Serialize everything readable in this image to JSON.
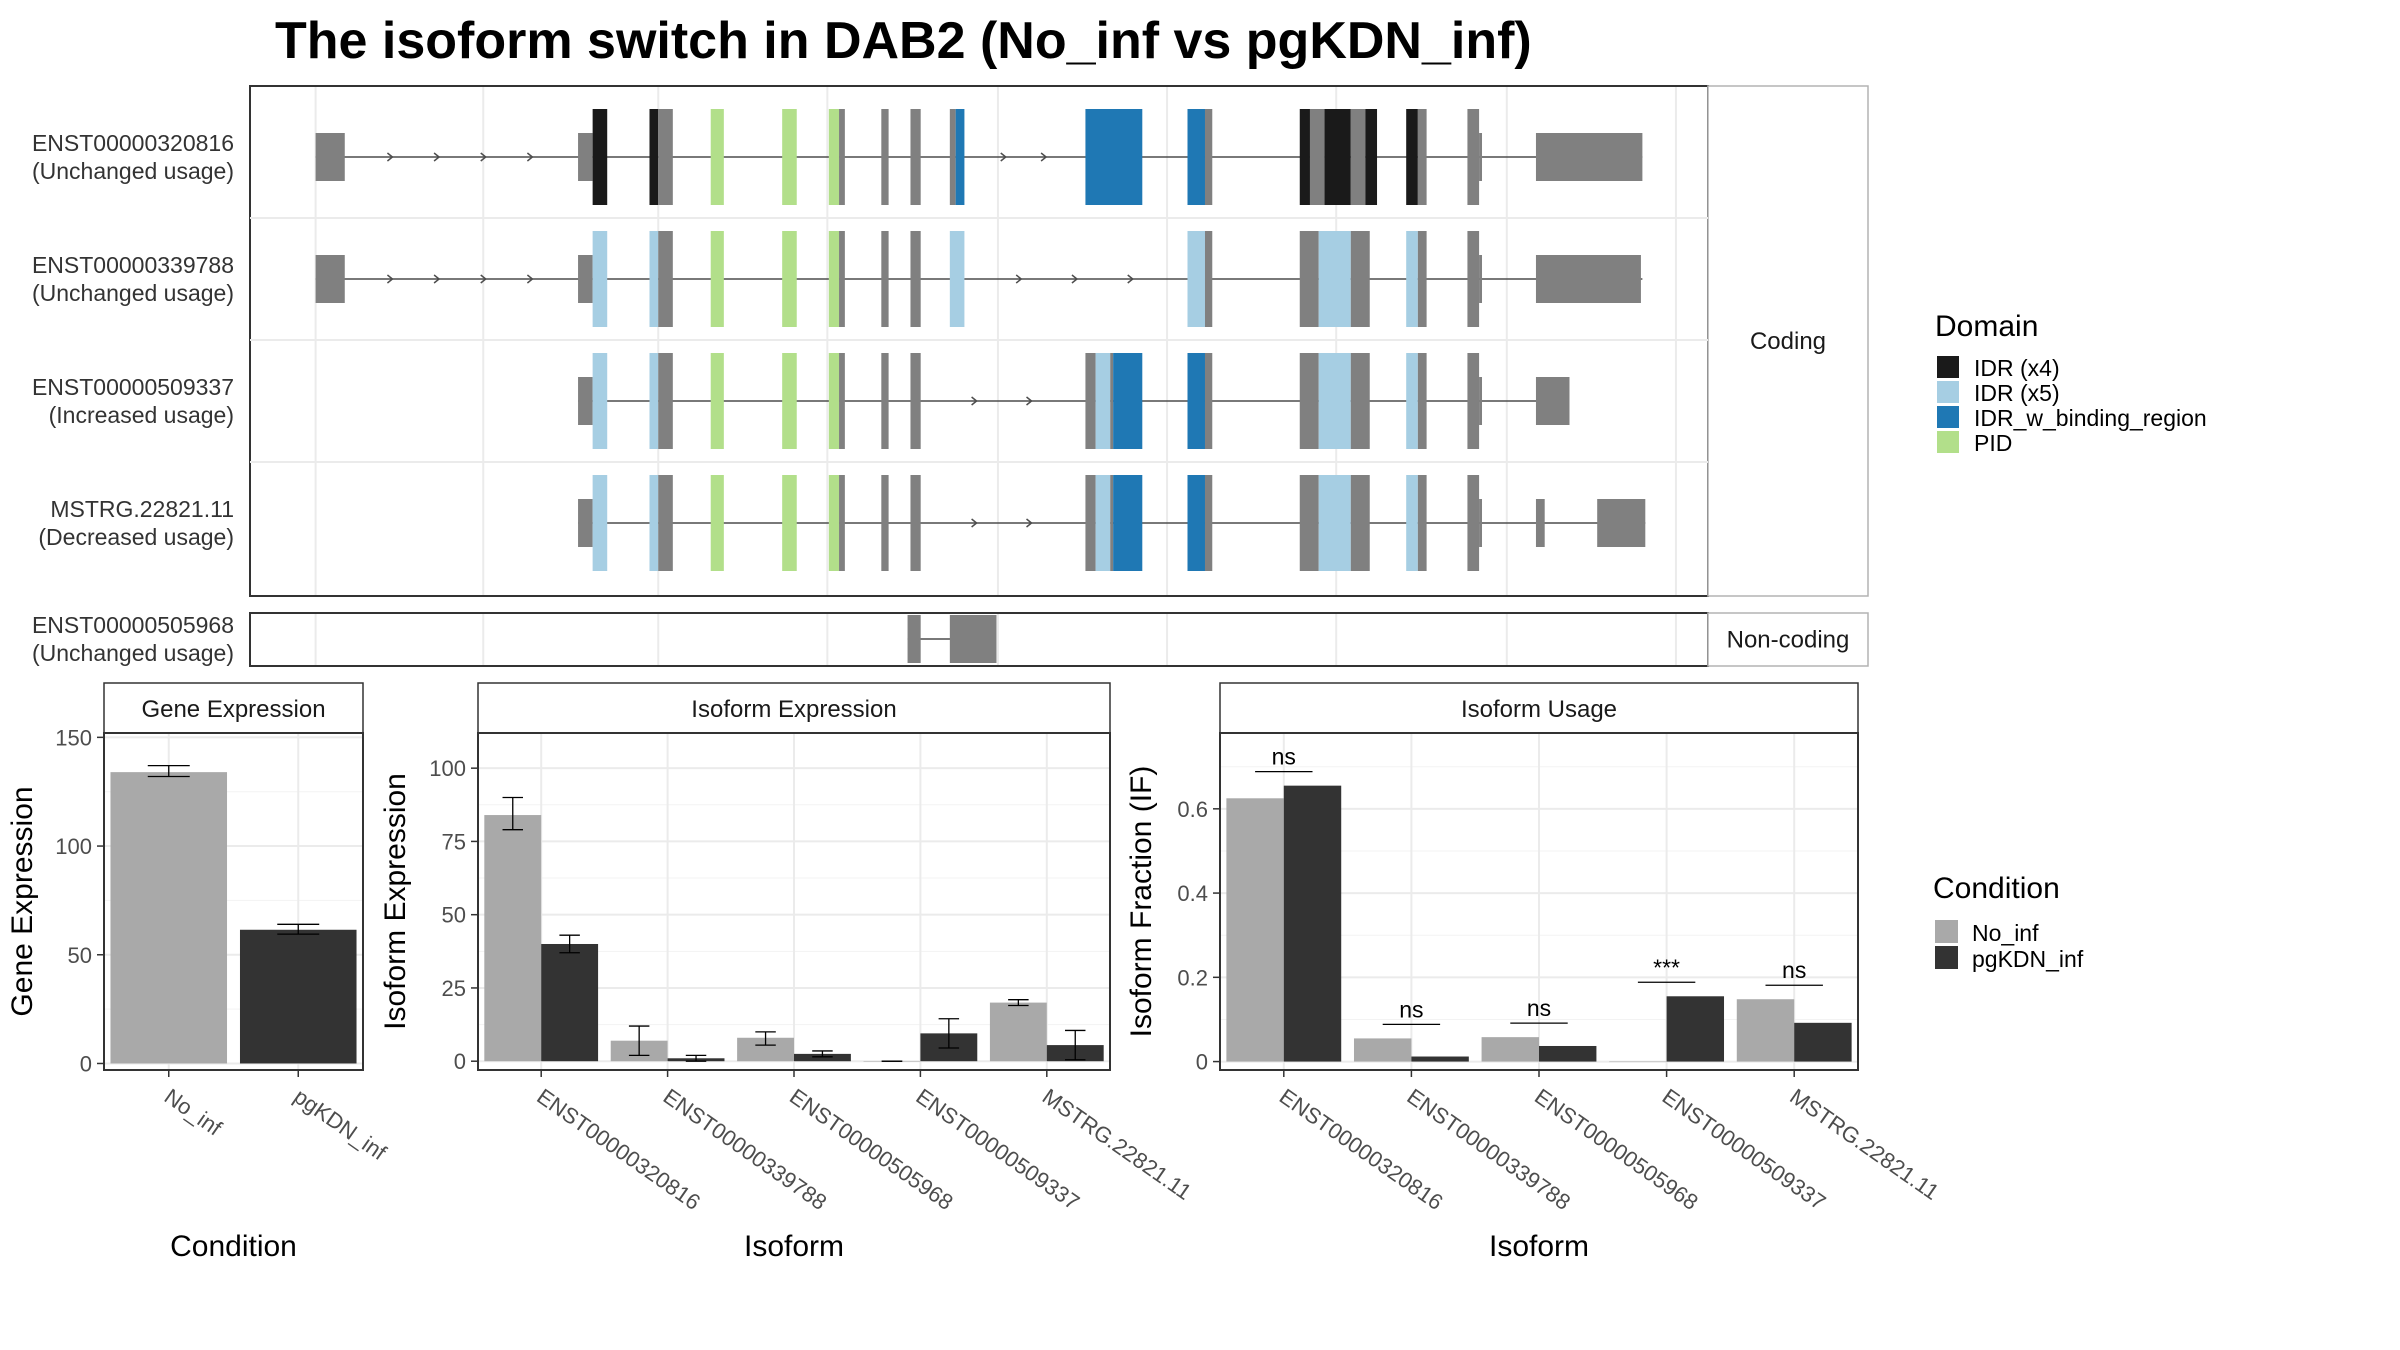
{
  "title": "The isoform switch in DAB2 (No_inf vs pgKDN_inf)",
  "colors": {
    "intron": "#4d4d4d",
    "exon": "#808080",
    "IDR_x4": "#1a1a1a",
    "IDR_x5": "#a6cee3",
    "IDR_w_binding_region": "#1f78b4",
    "PID": "#b2df8a",
    "No_inf": "#a9a9a9",
    "pgKDN_inf": "#333333",
    "grid": "#ebebeb",
    "panel_border": "#333333",
    "strip_border": "#b3b3b3"
  },
  "domain_legend": {
    "title": "Domain",
    "items": [
      {
        "key": "IDR_x4",
        "label": "IDR (x4)"
      },
      {
        "key": "IDR_x5",
        "label": "IDR (x5)"
      },
      {
        "key": "IDR_w_binding_region",
        "label": "IDR_w_binding_region"
      },
      {
        "key": "PID",
        "label": "PID"
      }
    ]
  },
  "condition_legend": {
    "title": "Condition",
    "items": [
      {
        "key": "No_inf",
        "label": "No_inf"
      },
      {
        "key": "pgKDN_inf",
        "label": "pgKDN_inf"
      }
    ]
  },
  "structure": {
    "coding_label": "Coding",
    "noncoding_label": "Non-coding",
    "coding": [
      {
        "id": "ENST00000320816",
        "usage": "(Unchanged usage)",
        "span": [
          0.045,
          0.955
        ],
        "exons": [
          [
            0.045,
            0.065,
            "exon",
            24
          ],
          [
            0.225,
            0.235,
            "exon",
            24
          ],
          [
            0.235,
            0.245,
            "IDR_x4",
            48
          ],
          [
            0.274,
            0.28,
            "IDR_x4",
            48
          ],
          [
            0.28,
            0.29,
            "exon",
            48
          ],
          [
            0.316,
            0.325,
            "PID",
            48
          ],
          [
            0.365,
            0.375,
            "PID",
            48
          ],
          [
            0.397,
            0.404,
            "PID",
            48
          ],
          [
            0.404,
            0.408,
            "exon",
            48
          ],
          [
            0.433,
            0.438,
            "exon",
            48
          ],
          [
            0.453,
            0.46,
            "exon",
            48
          ],
          [
            0.48,
            0.484,
            "exon",
            48
          ],
          [
            0.484,
            0.49,
            "IDR_w_binding_region",
            48
          ],
          [
            0.573,
            0.612,
            "IDR_w_binding_region",
            48
          ],
          [
            0.643,
            0.655,
            "IDR_w_binding_region",
            48
          ],
          [
            0.655,
            0.66,
            "exon",
            48
          ],
          [
            0.72,
            0.727,
            "IDR_x4",
            48
          ],
          [
            0.727,
            0.737,
            "exon",
            48
          ],
          [
            0.737,
            0.755,
            "IDR_x4",
            48
          ],
          [
            0.755,
            0.765,
            "exon",
            48
          ],
          [
            0.765,
            0.773,
            "IDR_x4",
            48
          ],
          [
            0.793,
            0.801,
            "IDR_x4",
            48
          ],
          [
            0.801,
            0.807,
            "exon",
            48
          ],
          [
            0.835,
            0.843,
            "exon",
            48
          ],
          [
            0.843,
            0.845,
            "exon",
            24
          ],
          [
            0.882,
            0.955,
            "exon",
            24
          ]
        ]
      },
      {
        "id": "ENST00000339788",
        "usage": "(Unchanged usage)",
        "span": [
          0.045,
          0.955
        ],
        "exons": [
          [
            0.045,
            0.065,
            "exon",
            24
          ],
          [
            0.225,
            0.235,
            "exon",
            24
          ],
          [
            0.235,
            0.245,
            "IDR_x5",
            48
          ],
          [
            0.274,
            0.28,
            "IDR_x5",
            48
          ],
          [
            0.28,
            0.29,
            "exon",
            48
          ],
          [
            0.316,
            0.325,
            "PID",
            48
          ],
          [
            0.365,
            0.375,
            "PID",
            48
          ],
          [
            0.397,
            0.404,
            "PID",
            48
          ],
          [
            0.404,
            0.408,
            "exon",
            48
          ],
          [
            0.433,
            0.438,
            "exon",
            48
          ],
          [
            0.453,
            0.46,
            "exon",
            48
          ],
          [
            0.48,
            0.49,
            "IDR_x5",
            48
          ],
          [
            0.643,
            0.655,
            "IDR_x5",
            48
          ],
          [
            0.655,
            0.66,
            "exon",
            48
          ],
          [
            0.72,
            0.733,
            "exon",
            48
          ],
          [
            0.733,
            0.755,
            "IDR_x5",
            48
          ],
          [
            0.755,
            0.768,
            "exon",
            48
          ],
          [
            0.793,
            0.801,
            "IDR_x5",
            48
          ],
          [
            0.801,
            0.807,
            "exon",
            48
          ],
          [
            0.835,
            0.843,
            "exon",
            48
          ],
          [
            0.843,
            0.845,
            "exon",
            24
          ],
          [
            0.882,
            0.954,
            "exon",
            24
          ]
        ]
      },
      {
        "id": "ENST00000509337",
        "usage": "(Increased usage)",
        "span": [
          0.225,
          0.905
        ],
        "exons": [
          [
            0.225,
            0.235,
            "exon",
            24
          ],
          [
            0.235,
            0.245,
            "IDR_x5",
            48
          ],
          [
            0.274,
            0.28,
            "IDR_x5",
            48
          ],
          [
            0.28,
            0.29,
            "exon",
            48
          ],
          [
            0.316,
            0.325,
            "PID",
            48
          ],
          [
            0.365,
            0.375,
            "PID",
            48
          ],
          [
            0.397,
            0.404,
            "PID",
            48
          ],
          [
            0.404,
            0.408,
            "exon",
            48
          ],
          [
            0.433,
            0.438,
            "exon",
            48
          ],
          [
            0.453,
            0.46,
            "exon",
            48
          ],
          [
            0.573,
            0.58,
            "exon",
            48
          ],
          [
            0.58,
            0.59,
            "IDR_x5",
            48
          ],
          [
            0.59,
            0.592,
            "exon",
            48
          ],
          [
            0.592,
            0.612,
            "IDR_w_binding_region",
            48
          ],
          [
            0.643,
            0.655,
            "IDR_w_binding_region",
            48
          ],
          [
            0.655,
            0.66,
            "exon",
            48
          ],
          [
            0.72,
            0.733,
            "exon",
            48
          ],
          [
            0.733,
            0.755,
            "IDR_x5",
            48
          ],
          [
            0.755,
            0.768,
            "exon",
            48
          ],
          [
            0.793,
            0.801,
            "IDR_x5",
            48
          ],
          [
            0.801,
            0.807,
            "exon",
            48
          ],
          [
            0.835,
            0.843,
            "exon",
            48
          ],
          [
            0.843,
            0.845,
            "exon",
            24
          ],
          [
            0.882,
            0.905,
            "exon",
            24
          ]
        ]
      },
      {
        "id": "MSTRG.22821.11",
        "usage": "(Decreased usage)",
        "span": [
          0.225,
          0.957
        ],
        "exons": [
          [
            0.225,
            0.235,
            "exon",
            24
          ],
          [
            0.235,
            0.245,
            "IDR_x5",
            48
          ],
          [
            0.274,
            0.28,
            "IDR_x5",
            48
          ],
          [
            0.28,
            0.29,
            "exon",
            48
          ],
          [
            0.316,
            0.325,
            "PID",
            48
          ],
          [
            0.365,
            0.375,
            "PID",
            48
          ],
          [
            0.397,
            0.404,
            "PID",
            48
          ],
          [
            0.404,
            0.408,
            "exon",
            48
          ],
          [
            0.433,
            0.438,
            "exon",
            48
          ],
          [
            0.453,
            0.46,
            "exon",
            48
          ],
          [
            0.573,
            0.58,
            "exon",
            48
          ],
          [
            0.58,
            0.59,
            "IDR_x5",
            48
          ],
          [
            0.59,
            0.592,
            "exon",
            48
          ],
          [
            0.592,
            0.612,
            "IDR_w_binding_region",
            48
          ],
          [
            0.643,
            0.655,
            "IDR_w_binding_region",
            48
          ],
          [
            0.655,
            0.66,
            "exon",
            48
          ],
          [
            0.72,
            0.733,
            "exon",
            48
          ],
          [
            0.733,
            0.755,
            "IDR_x5",
            48
          ],
          [
            0.755,
            0.768,
            "exon",
            48
          ],
          [
            0.793,
            0.801,
            "IDR_x5",
            48
          ],
          [
            0.801,
            0.807,
            "exon",
            48
          ],
          [
            0.835,
            0.843,
            "exon",
            48
          ],
          [
            0.843,
            0.845,
            "exon",
            24
          ],
          [
            0.882,
            0.888,
            "exon",
            24
          ],
          [
            0.924,
            0.957,
            "exon",
            24
          ]
        ]
      }
    ],
    "noncoding": [
      {
        "id": "ENST00000505968",
        "usage": "(Unchanged usage)",
        "span": [
          0.451,
          0.512
        ],
        "exons": [
          [
            0.451,
            0.46,
            "exon",
            48
          ],
          [
            0.48,
            0.512,
            "exon",
            48
          ]
        ]
      }
    ]
  },
  "chart_data": [
    {
      "type": "bar",
      "title": "Gene Expression",
      "xlabel": "Condition",
      "ylabel": "Gene Expression",
      "categories": [
        "No_inf",
        "pgKDN_inf"
      ],
      "values": [
        134,
        61.5
      ],
      "errors": [
        [
          132,
          137
        ],
        [
          59.5,
          64
        ]
      ],
      "ylim": [
        -3,
        152
      ],
      "yticks": [
        0,
        50,
        100,
        150
      ]
    },
    {
      "type": "bar",
      "title": "Isoform Expression",
      "xlabel": "Isoform",
      "ylabel": "Isoform Expression",
      "categories": [
        "ENST00000320816",
        "ENST00000339788",
        "ENST00000505968",
        "ENST00000509337",
        "MSTRG.22821.11"
      ],
      "series": [
        {
          "name": "No_inf",
          "values": [
            84,
            7,
            8,
            0,
            20
          ],
          "errors": [
            [
              79,
              90
            ],
            [
              2,
              12
            ],
            [
              5.5,
              10
            ],
            [
              0,
              0
            ],
            [
              19,
              21
            ]
          ]
        },
        {
          "name": "pgKDN_inf",
          "values": [
            40,
            1,
            2.5,
            9.5,
            5.5
          ],
          "errors": [
            [
              37,
              43
            ],
            [
              0,
              2
            ],
            [
              1.5,
              3.5
            ],
            [
              4.5,
              14.5
            ],
            [
              0.5,
              10.5
            ]
          ]
        }
      ],
      "ylim": [
        -3,
        112
      ],
      "yticks": [
        0,
        25,
        50,
        75,
        100
      ]
    },
    {
      "type": "bar",
      "title": "Isoform Usage",
      "xlabel": "Isoform",
      "ylabel": "Isoform Fraction (IF)",
      "categories": [
        "ENST00000320816",
        "ENST00000339788",
        "ENST00000505968",
        "ENST00000509337",
        "MSTRG.22821.11"
      ],
      "series": [
        {
          "name": "No_inf",
          "values": [
            0.625,
            0.055,
            0.058,
            0.0,
            0.148
          ]
        },
        {
          "name": "pgKDN_inf",
          "values": [
            0.655,
            0.012,
            0.037,
            0.155,
            0.092
          ]
        }
      ],
      "significance": [
        "ns",
        "ns",
        "ns",
        "***",
        "ns"
      ],
      "ylim": [
        -0.02,
        0.78
      ],
      "yticks": [
        0.0,
        0.2,
        0.4,
        0.6
      ]
    }
  ]
}
